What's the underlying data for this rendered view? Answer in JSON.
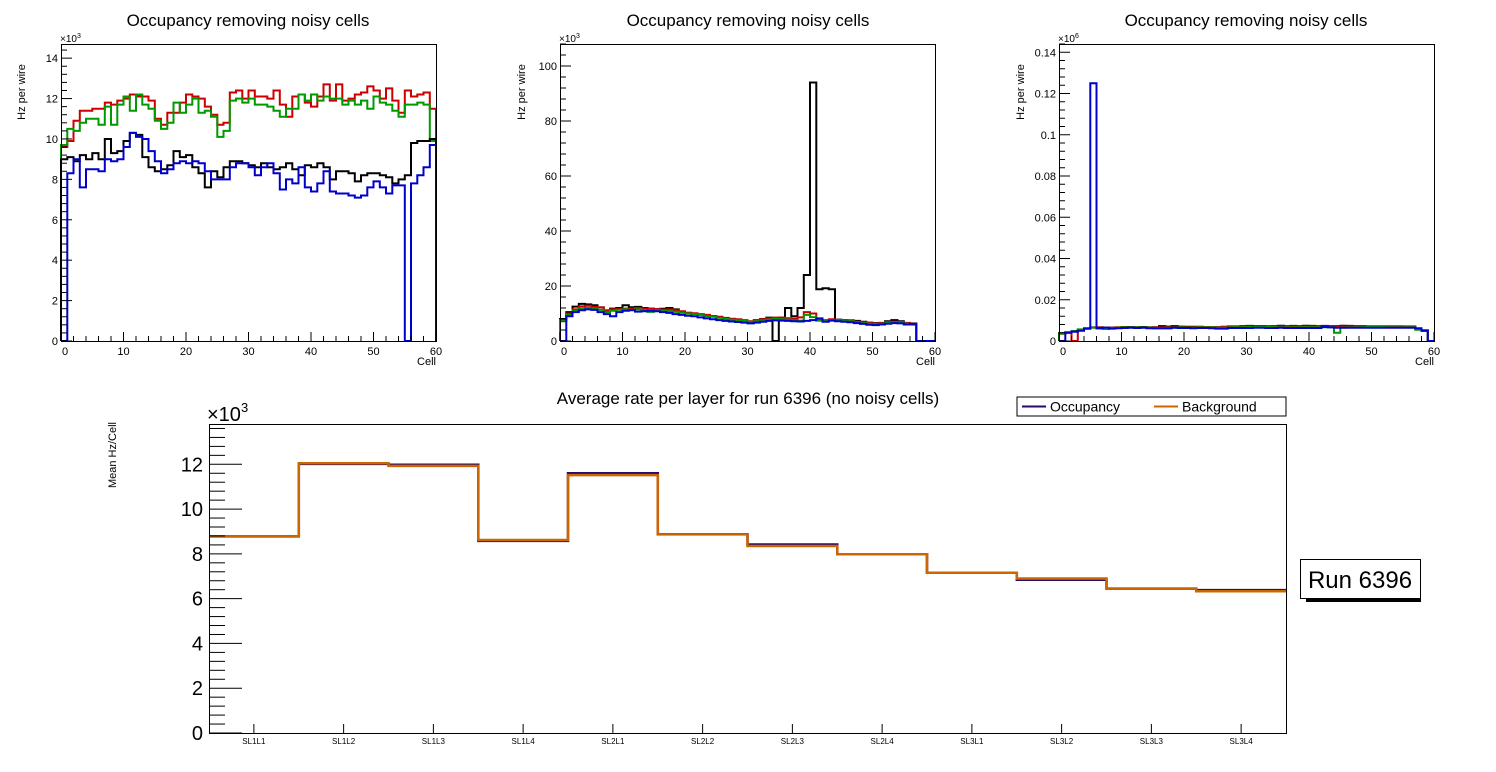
{
  "chart_data": [
    {
      "type": "line",
      "style": "step-histogram",
      "title": "Occupancy removing noisy cells",
      "xlabel": "Cell",
      "ylabel": "Hz per wire",
      "y_exponent_label": "×10",
      "y_exponent": "3",
      "xlim": [
        0,
        60
      ],
      "ylim": [
        0,
        14.7
      ],
      "x_ticks": [
        "0",
        "10",
        "20",
        "30",
        "40",
        "50",
        "60"
      ],
      "y_ticks": [
        "0",
        "2",
        "4",
        "6",
        "8",
        "10",
        "12",
        "14"
      ],
      "y_tick_values": [
        0,
        2,
        4,
        6,
        8,
        10,
        12,
        14
      ],
      "grid": false,
      "series": [
        {
          "name": "red",
          "color": "#cc0000",
          "values": [
            9.6,
            9.9,
            10.9,
            11.4,
            11.4,
            11.5,
            11.5,
            11.8,
            11.7,
            11.9,
            12.0,
            12.2,
            12.1,
            12.1,
            11.9,
            11.0,
            10.7,
            11.3,
            11.3,
            11.8,
            12.2,
            12.1,
            12.0,
            11.6,
            11.2,
            10.7,
            10.8,
            12.3,
            12.4,
            12.0,
            12.4,
            12.1,
            12.1,
            12.0,
            12.4,
            11.7,
            11.1,
            12.1,
            12.2,
            11.8,
            11.6,
            12.1,
            12.7,
            11.9,
            12.7,
            11.9,
            12.0,
            12.2,
            12.3,
            12.6,
            12.4,
            12.0,
            12.5,
            11.9,
            11.3,
            12.4,
            12.1,
            12.2,
            12.3,
            11.5
          ]
        },
        {
          "name": "green",
          "color": "#009900",
          "values": [
            9.7,
            10.5,
            10.4,
            10.8,
            11.0,
            11.0,
            10.7,
            11.6,
            10.7,
            11.7,
            12.1,
            11.4,
            12.2,
            11.7,
            11.5,
            10.9,
            10.5,
            10.8,
            11.8,
            11.3,
            11.7,
            12.0,
            11.3,
            11.4,
            11.1,
            10.1,
            10.4,
            11.9,
            12.0,
            11.8,
            12.0,
            11.7,
            11.7,
            11.6,
            11.4,
            11.1,
            11.5,
            11.5,
            12.2,
            11.9,
            12.2,
            11.9,
            12.1,
            12.0,
            12.0,
            11.7,
            11.9,
            11.7,
            11.9,
            11.5,
            12.1,
            11.8,
            11.7,
            11.4,
            11.1,
            11.7,
            11.7,
            11.8,
            11.7,
            9.9
          ]
        },
        {
          "name": "black",
          "color": "#000000",
          "values": [
            9.0,
            9.1,
            8.9,
            9.2,
            9.0,
            9.3,
            9.0,
            10.0,
            9.3,
            9.4,
            9.9,
            10.3,
            10.2,
            9.1,
            8.6,
            8.4,
            8.5,
            8.7,
            9.4,
            9.1,
            9.2,
            8.6,
            8.3,
            7.6,
            8.4,
            8.1,
            8.6,
            8.9,
            8.9,
            8.8,
            8.7,
            8.6,
            8.8,
            8.6,
            8.5,
            8.6,
            8.8,
            8.5,
            8.2,
            8.7,
            8.6,
            8.8,
            8.6,
            8.0,
            8.4,
            8.4,
            8.3,
            7.9,
            8.2,
            8.3,
            8.3,
            8.2,
            8.1,
            7.8,
            8.0,
            8.2,
            9.8,
            9.9,
            9.9,
            10.0
          ]
        },
        {
          "name": "blue",
          "color": "#0000cc",
          "values": [
            0.0,
            8.3,
            9.0,
            7.6,
            8.5,
            8.5,
            8.4,
            9.0,
            8.9,
            9.0,
            9.6,
            10.3,
            10.1,
            10.0,
            9.4,
            8.9,
            8.3,
            8.5,
            8.8,
            8.9,
            8.8,
            8.9,
            8.8,
            8.4,
            8.0,
            8.0,
            8.0,
            8.6,
            8.8,
            8.8,
            8.6,
            8.2,
            8.6,
            8.8,
            8.3,
            7.5,
            8.0,
            7.8,
            8.6,
            7.6,
            7.4,
            7.8,
            8.4,
            7.4,
            7.3,
            7.3,
            7.2,
            7.1,
            7.2,
            7.6,
            7.9,
            7.6,
            7.3,
            7.7,
            7.7,
            0.0,
            7.8,
            8.2,
            8.6,
            9.7
          ]
        }
      ]
    },
    {
      "type": "line",
      "style": "step-histogram",
      "title": "Occupancy removing noisy cells",
      "xlabel": "Cell",
      "ylabel": "Hz per wire",
      "y_exponent_label": "×10",
      "y_exponent": "3",
      "xlim": [
        0,
        60
      ],
      "ylim": [
        0,
        108
      ],
      "x_ticks": [
        "0",
        "10",
        "20",
        "30",
        "40",
        "50",
        "60"
      ],
      "y_ticks": [
        "0",
        "20",
        "40",
        "60",
        "80",
        "100"
      ],
      "y_tick_values": [
        0,
        20,
        40,
        60,
        80,
        100
      ],
      "grid": false,
      "series": [
        {
          "name": "black",
          "color": "#000000",
          "values": [
            8.0,
            10.5,
            12.5,
            13.5,
            13.3,
            13.0,
            12.2,
            11.0,
            11.8,
            12.0,
            13.0,
            12.3,
            12.4,
            12.0,
            11.8,
            11.6,
            11.7,
            12.0,
            11.5,
            10.5,
            10.2,
            10.0,
            9.6,
            9.3,
            9.0,
            8.6,
            8.2,
            8.0,
            7.8,
            7.4,
            7.1,
            7.6,
            8.0,
            8.5,
            0.0,
            8.5,
            12.0,
            9.0,
            12.0,
            24.0,
            94.0,
            18.8,
            19.2,
            18.8,
            7.8,
            7.6,
            7.5,
            7.3,
            7.0,
            6.7,
            6.5,
            6.6,
            7.2,
            7.6,
            7.2,
            6.5,
            6.0,
            0.0,
            0.0,
            0.0
          ]
        },
        {
          "name": "red",
          "color": "#cc0000",
          "values": [
            7.2,
            10.0,
            11.5,
            12.6,
            12.8,
            12.4,
            12.2,
            11.2,
            11.5,
            11.6,
            11.8,
            11.8,
            12.0,
            11.8,
            11.8,
            11.6,
            11.4,
            11.5,
            11.2,
            10.8,
            10.3,
            10.1,
            9.8,
            9.5,
            9.1,
            8.8,
            8.4,
            8.1,
            7.9,
            7.6,
            7.2,
            7.5,
            7.9,
            8.2,
            8.5,
            8.5,
            8.3,
            8.1,
            8.6,
            10.5,
            10.0,
            7.9,
            7.6,
            7.9,
            7.6,
            7.4,
            7.3,
            7.0,
            6.8,
            6.6,
            6.3,
            6.5,
            6.9,
            7.0,
            6.9,
            6.6,
            6.4,
            0.0,
            0.0,
            0.0
          ]
        },
        {
          "name": "green",
          "color": "#009900",
          "values": [
            7.6,
            9.5,
            11.0,
            11.8,
            12.0,
            11.8,
            11.3,
            10.5,
            11.0,
            11.3,
            11.5,
            11.3,
            11.5,
            11.2,
            10.6,
            11.2,
            11.0,
            10.8,
            10.6,
            10.3,
            10.0,
            9.8,
            9.5,
            9.0,
            8.8,
            8.4,
            8.0,
            7.7,
            7.5,
            7.3,
            6.9,
            7.2,
            7.5,
            7.8,
            8.0,
            7.9,
            7.8,
            7.6,
            7.4,
            9.5,
            8.7,
            7.4,
            7.4,
            7.6,
            7.6,
            7.4,
            7.2,
            6.8,
            6.5,
            6.3,
            6.1,
            6.3,
            6.6,
            6.8,
            6.7,
            6.3,
            6.2,
            0.0,
            0.0,
            0.0
          ]
        },
        {
          "name": "blue",
          "color": "#0000cc",
          "values": [
            0.0,
            9.0,
            10.5,
            11.2,
            11.5,
            11.3,
            10.5,
            9.8,
            9.0,
            10.5,
            11.0,
            11.2,
            10.7,
            10.8,
            11.0,
            10.8,
            10.5,
            10.2,
            9.8,
            9.5,
            9.2,
            9.0,
            8.6,
            8.2,
            7.9,
            7.6,
            7.3,
            7.1,
            6.9,
            6.7,
            6.4,
            6.7,
            7.0,
            7.3,
            7.5,
            7.4,
            7.3,
            7.2,
            7.1,
            7.3,
            7.6,
            8.2,
            7.0,
            7.4,
            7.2,
            7.0,
            6.8,
            6.5,
            6.2,
            5.9,
            5.8,
            6.0,
            6.3,
            6.5,
            6.4,
            6.0,
            6.3,
            0.0,
            0.0,
            0.0
          ]
        }
      ]
    },
    {
      "type": "line",
      "style": "step-histogram",
      "title": "Occupancy removing noisy cells",
      "xlabel": "Cell",
      "ylabel": "Hz per wire",
      "y_exponent_label": "×10",
      "y_exponent": "6",
      "xlim": [
        0,
        60
      ],
      "ylim": [
        0,
        0.144
      ],
      "x_ticks": [
        "0",
        "10",
        "20",
        "30",
        "40",
        "50",
        "60"
      ],
      "y_ticks": [
        "0",
        "0.02",
        "0.04",
        "0.06",
        "0.08",
        "0.1",
        "0.12",
        "0.14"
      ],
      "y_tick_values": [
        0,
        0.02,
        0.04,
        0.06,
        0.08,
        0.1,
        0.12,
        0.14
      ],
      "grid": false,
      "series": [
        {
          "name": "black",
          "color": "#000000",
          "values": [
            0.0038,
            0.0042,
            0.0048,
            0.0055,
            0.0062,
            0.0066,
            0.0066,
            0.0064,
            0.0065,
            0.0066,
            0.0068,
            0.0068,
            0.0067,
            0.0068,
            0.0066,
            0.0067,
            0.0072,
            0.007,
            0.0072,
            0.007,
            0.0069,
            0.0069,
            0.0069,
            0.0068,
            0.0068,
            0.0067,
            0.0069,
            0.0071,
            0.0071,
            0.0072,
            0.0073,
            0.0072,
            0.0072,
            0.0071,
            0.0072,
            0.0074,
            0.0072,
            0.0073,
            0.0072,
            0.0074,
            0.0073,
            0.0072,
            0.0073,
            0.0072,
            0.0072,
            0.0074,
            0.0073,
            0.0072,
            0.0072,
            0.0071,
            0.0071,
            0.0071,
            0.0071,
            0.0071,
            0.0071,
            0.007,
            0.0069,
            0.006,
            0.0052,
            0.0
          ]
        },
        {
          "name": "red",
          "color": "#cc0000",
          "values": [
            0.0035,
            0.004,
            0.0,
            0.0052,
            0.006,
            0.0065,
            0.0066,
            0.0064,
            0.0064,
            0.0066,
            0.0067,
            0.0067,
            0.0067,
            0.0066,
            0.0066,
            0.0065,
            0.0066,
            0.0067,
            0.0067,
            0.0067,
            0.0067,
            0.0067,
            0.0068,
            0.0068,
            0.0068,
            0.0067,
            0.0068,
            0.007,
            0.007,
            0.007,
            0.0071,
            0.0071,
            0.0072,
            0.0072,
            0.0071,
            0.0071,
            0.0071,
            0.0071,
            0.0071,
            0.0071,
            0.0071,
            0.0071,
            0.0071,
            0.0071,
            0.0071,
            0.0071,
            0.0071,
            0.0071,
            0.0071,
            0.0071,
            0.0071,
            0.0071,
            0.0071,
            0.0071,
            0.0071,
            0.0071,
            0.0071,
            0.0058,
            0.005,
            0.0
          ]
        },
        {
          "name": "green",
          "color": "#009900",
          "values": [
            0.0036,
            0.0041,
            0.0047,
            0.0056,
            0.006,
            0.0065,
            0.006,
            0.0058,
            0.0061,
            0.0064,
            0.0066,
            0.0066,
            0.0066,
            0.0066,
            0.0064,
            0.0063,
            0.0063,
            0.0064,
            0.0065,
            0.0066,
            0.0065,
            0.0065,
            0.0066,
            0.0066,
            0.0066,
            0.0064,
            0.0064,
            0.0066,
            0.0067,
            0.0067,
            0.0068,
            0.0068,
            0.0068,
            0.0068,
            0.0067,
            0.0067,
            0.0066,
            0.0066,
            0.0066,
            0.0067,
            0.0067,
            0.0067,
            0.0067,
            0.0067,
            0.004,
            0.0065,
            0.0066,
            0.0067,
            0.0067,
            0.0068,
            0.0068,
            0.0068,
            0.0067,
            0.0067,
            0.0067,
            0.0067,
            0.0067,
            0.0055,
            0.005,
            0.0
          ]
        },
        {
          "name": "blue",
          "color": "#0000cc",
          "values": [
            0.0,
            0.004,
            0.0045,
            0.005,
            0.006,
            0.125,
            0.0063,
            0.0065,
            0.006,
            0.0062,
            0.0063,
            0.0064,
            0.0063,
            0.0064,
            0.0062,
            0.0061,
            0.0061,
            0.0061,
            0.0064,
            0.0063,
            0.0063,
            0.0062,
            0.0063,
            0.0063,
            0.0062,
            0.006,
            0.006,
            0.0063,
            0.0063,
            0.0063,
            0.0063,
            0.0064,
            0.0064,
            0.0063,
            0.0063,
            0.0064,
            0.0063,
            0.0063,
            0.0063,
            0.0063,
            0.0063,
            0.0063,
            0.0068,
            0.0066,
            0.0064,
            0.0064,
            0.0064,
            0.0064,
            0.0064,
            0.0064,
            0.0064,
            0.0064,
            0.0064,
            0.0064,
            0.0064,
            0.0064,
            0.0064,
            0.0062,
            0.005,
            0.0
          ]
        }
      ]
    },
    {
      "type": "line",
      "style": "step-histogram",
      "title": "Average rate per layer for run 6396 (no noisy cells)",
      "xlabel": "",
      "ylabel": "Mean Hz/Cell",
      "y_exponent_label": "×10",
      "y_exponent": "3",
      "categories": [
        "SL1L1",
        "SL1L2",
        "SL1L3",
        "SL1L4",
        "SL2L1",
        "SL2L2",
        "SL2L3",
        "SL2L4",
        "SL3L1",
        "SL3L2",
        "SL3L3",
        "SL3L4"
      ],
      "ylim": [
        0,
        13.8
      ],
      "y_ticks": [
        "0",
        "2",
        "4",
        "6",
        "8",
        "10",
        "12"
      ],
      "y_tick_values": [
        0,
        2,
        4,
        6,
        8,
        10,
        12
      ],
      "grid": false,
      "legend": "top-right",
      "series": [
        {
          "name": "Occupancy",
          "color": "#2a0a6e",
          "values": [
            8.78,
            12.02,
            11.98,
            8.58,
            11.6,
            8.88,
            8.42,
            7.98,
            7.16,
            6.84,
            6.45,
            6.38
          ]
        },
        {
          "name": "Background",
          "color": "#cc6600",
          "values": [
            8.78,
            12.05,
            11.93,
            8.62,
            11.52,
            8.87,
            8.35,
            7.98,
            7.16,
            6.9,
            6.45,
            6.33
          ]
        }
      ]
    }
  ],
  "annotation": {
    "run_label": "Run 6396"
  }
}
